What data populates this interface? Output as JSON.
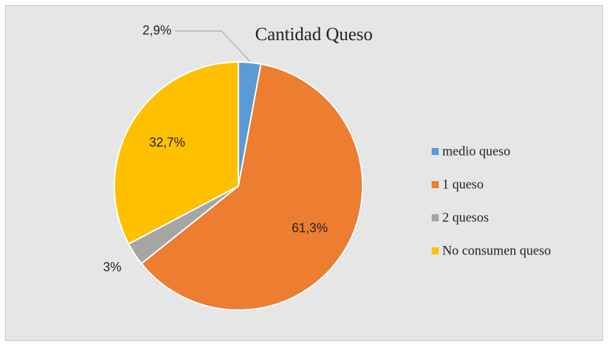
{
  "chart_data": {
    "type": "pie",
    "title": "Cantidad Queso",
    "categories": [
      "medio queso",
      "1 queso",
      "2 quesos",
      "No consumen queso"
    ],
    "values": [
      2.9,
      61.3,
      3,
      32.7
    ],
    "value_labels": [
      "2,9%",
      "61,3%",
      "3%",
      "32,7%"
    ],
    "colors": [
      "#5b9bd5",
      "#ed7d31",
      "#a5a5a5",
      "#ffc000"
    ],
    "legend": "right"
  }
}
